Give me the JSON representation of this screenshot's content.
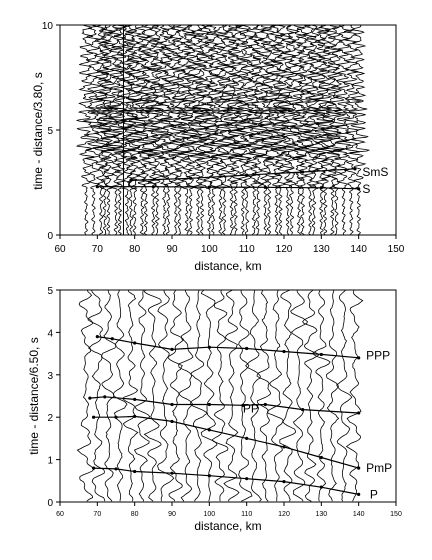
{
  "chart_data": [
    {
      "type": "line",
      "subtype": "seismic record section (shear waves)",
      "xlabel": "distance, km",
      "ylabel": "time - distance/3.80, s",
      "xlim": [
        60,
        150
      ],
      "ylim": [
        0,
        10
      ],
      "xticks": [
        60,
        70,
        80,
        90,
        100,
        110,
        120,
        130,
        140,
        150
      ],
      "yticks": [
        0,
        5,
        10
      ],
      "vertical_line_x": 77,
      "trace_distances_km": [
        67,
        69,
        71,
        72,
        73,
        75,
        76,
        78,
        79,
        80,
        82,
        83,
        85,
        86,
        88,
        89,
        91,
        92,
        94,
        95,
        97,
        98,
        100,
        101,
        103,
        104,
        106,
        107,
        109,
        110,
        112,
        113,
        115,
        116,
        118,
        119,
        121,
        122,
        124,
        125,
        127,
        128,
        130,
        131,
        133,
        134,
        136,
        138,
        140
      ],
      "phases": [
        {
          "name": "SmS",
          "label_at": [
            141,
            3.0
          ],
          "x": [
            79,
            95,
            110,
            125,
            139
          ],
          "y": [
            2.6,
            2.7,
            2.85,
            3.0,
            3.15
          ]
        },
        {
          "name": "S",
          "label_at": [
            141,
            2.2
          ],
          "x": [
            70,
            85,
            100,
            115,
            130,
            140
          ],
          "y": [
            2.3,
            2.3,
            2.28,
            2.27,
            2.25,
            2.2
          ]
        }
      ]
    },
    {
      "type": "line",
      "subtype": "seismic record section (compressional waves)",
      "xlabel": "distance, km",
      "ylabel": "time - distance/6.50, s",
      "xlim": [
        60,
        150
      ],
      "ylim": [
        0,
        5
      ],
      "xticks": [
        60,
        70,
        80,
        90,
        100,
        110,
        120,
        130,
        140,
        150
      ],
      "yticks": [
        0,
        1,
        2,
        3,
        4,
        5
      ],
      "trace_distances_km": [
        67,
        70,
        73,
        76,
        79,
        82,
        85,
        88,
        91,
        94,
        97,
        100,
        103,
        106,
        109,
        112,
        115,
        118,
        121,
        124,
        127,
        130,
        133,
        136,
        139
      ],
      "phases": [
        {
          "name": "PPP",
          "label_at": [
            142,
            3.45
          ],
          "x": [
            70,
            74,
            80,
            90,
            100,
            110,
            120,
            130,
            140
          ],
          "y": [
            3.9,
            3.85,
            3.75,
            3.6,
            3.65,
            3.62,
            3.55,
            3.48,
            3.4
          ]
        },
        {
          "name": "PP",
          "label_at": [
            109,
            2.2
          ],
          "x": [
            68,
            72,
            80,
            90,
            100,
            109,
            115,
            125,
            140
          ],
          "y": [
            2.45,
            2.48,
            2.42,
            2.3,
            2.3,
            2.28,
            2.3,
            2.18,
            2.1
          ]
        },
        {
          "name": "PmP",
          "label_at": [
            142,
            0.8
          ],
          "x": [
            69,
            75,
            80,
            90,
            100,
            110,
            120,
            130,
            140
          ],
          "y": [
            2.0,
            2.0,
            2.02,
            1.9,
            1.7,
            1.5,
            1.3,
            1.05,
            0.8
          ]
        },
        {
          "name": "P",
          "label_at": [
            143,
            0.18
          ],
          "x": [
            69,
            75,
            80,
            90,
            100,
            110,
            120,
            130,
            140
          ],
          "y": [
            0.8,
            0.78,
            0.72,
            0.68,
            0.62,
            0.55,
            0.48,
            0.35,
            0.18
          ]
        }
      ]
    }
  ]
}
